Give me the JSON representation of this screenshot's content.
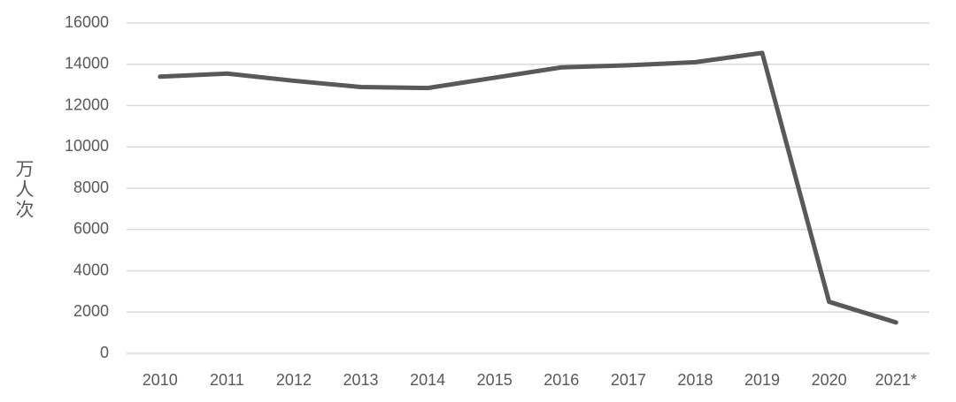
{
  "chart_data": {
    "type": "line",
    "y_label": "万人次",
    "categories": [
      "2010",
      "2011",
      "2012",
      "2013",
      "2014",
      "2015",
      "2016",
      "2017",
      "2018",
      "2019",
      "2020",
      "2021*"
    ],
    "values": [
      13400,
      13550,
      13200,
      12900,
      12850,
      13350,
      13850,
      13950,
      14100,
      14550,
      2500,
      1500
    ],
    "color": "#595959",
    "ylim": [
      0,
      16000
    ],
    "yticks": [
      0,
      2000,
      4000,
      6000,
      8000,
      10000,
      12000,
      14000,
      16000
    ],
    "grid": true
  }
}
